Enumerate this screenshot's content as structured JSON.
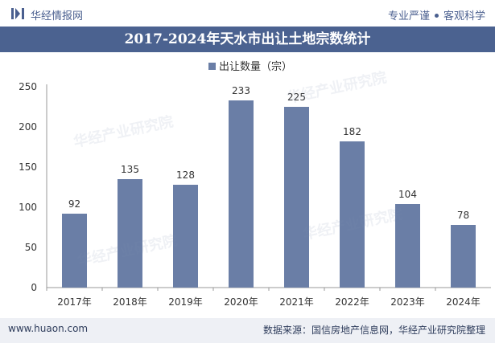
{
  "header": {
    "brand": "华经情报网",
    "tagline_left": "专业严谨",
    "tagline_right": "客观科学"
  },
  "chart_data": {
    "type": "bar",
    "title": "2017-2024年天水市出让土地宗数统计",
    "categories": [
      "2017年",
      "2018年",
      "2019年",
      "2020年",
      "2021年",
      "2022年",
      "2023年",
      "2024年"
    ],
    "series": [
      {
        "name": "出让数量（宗）",
        "values": [
          92,
          135,
          128,
          233,
          225,
          182,
          104,
          78
        ]
      }
    ],
    "ylim": [
      0,
      250
    ],
    "yticks": [
      0,
      50,
      100,
      150,
      200,
      250
    ],
    "xlabel": "",
    "ylabel": "",
    "legend": "top-center",
    "grid": false,
    "color": "#6a7ea6"
  },
  "watermark": {
    "text": "华经产业研究院"
  },
  "footer": {
    "left": "www.huaon.com",
    "right": "数据来源：国信房地产信息网，华经产业研究院整理"
  }
}
